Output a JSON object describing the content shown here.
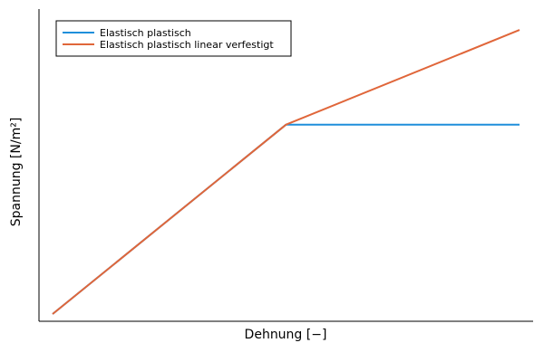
{
  "chart_data": {
    "type": "line",
    "title": "",
    "xlabel": "Dehnung [−]",
    "ylabel": "Spannung [N/m²]",
    "grid": false,
    "legend_position": "top-left",
    "xlim": [
      0,
      1
    ],
    "ylim": [
      0,
      1
    ],
    "series": [
      {
        "name": "Elastisch plastisch",
        "color": "#1f8fdb",
        "x": [
          0,
          0.5,
          1
        ],
        "y": [
          0,
          0.64,
          0.64
        ]
      },
      {
        "name": "Elastisch plastisch linear verfestigt",
        "color": "#e0663a",
        "x": [
          0,
          0.5,
          1
        ],
        "y": [
          0,
          0.64,
          0.96
        ]
      }
    ]
  }
}
